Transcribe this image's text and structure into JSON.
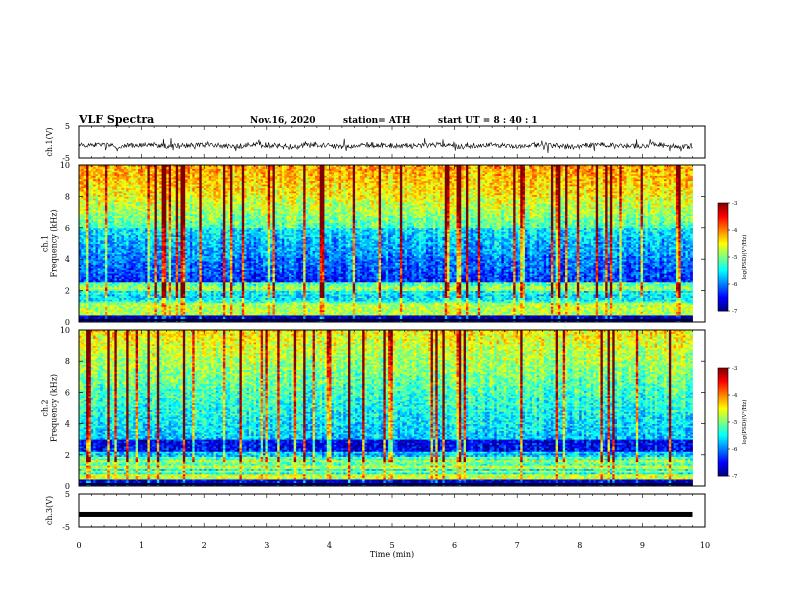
{
  "header": {
    "title": "VLF Spectra",
    "date": "Nov.16, 2020",
    "station": "station= ATH",
    "start": "start UT = 8 : 40 : 1"
  },
  "chart_data": [
    {
      "type": "line",
      "name": "ch1-waveform",
      "ylabel": "ch.1(V)",
      "yticks": [
        "5",
        "-5"
      ],
      "ylim": [
        -5,
        5
      ],
      "xlim": [
        0,
        10
      ],
      "data_end_min": 9.8,
      "description_level": "noisy trace centred near -1 V, range about -3 to 1 V"
    },
    {
      "type": "heatmap",
      "name": "ch1-spectrogram",
      "ylabel": "ch.1\nFrequency (kHz)",
      "ylabel_lines": [
        "ch.1",
        "Frequency (kHz)"
      ],
      "yticks": [
        "0",
        "2",
        "4",
        "6",
        "8",
        "10"
      ],
      "ylim": [
        0,
        10
      ],
      "xlim": [
        0,
        10
      ],
      "data_end_min": 9.8,
      "colorbar": {
        "label": "log(PSD)(V²/Hz)",
        "ticks": [
          "-3",
          "-4",
          "-5",
          "-6",
          "-7"
        ],
        "range": [
          -7,
          -3
        ]
      }
    },
    {
      "type": "heatmap",
      "name": "ch2-spectrogram",
      "ylabel_lines": [
        "ch.2",
        "Frequency (kHz)"
      ],
      "yticks": [
        "0",
        "2",
        "4",
        "6",
        "8",
        "10"
      ],
      "ylim": [
        0,
        10
      ],
      "xlim": [
        0,
        10
      ],
      "data_end_min": 9.8,
      "colorbar": {
        "label": "log(PSD)(V²/Hz)",
        "ticks": [
          "-3",
          "-4",
          "-5",
          "-6",
          "-7"
        ],
        "range": [
          -7,
          -3
        ]
      }
    },
    {
      "type": "line",
      "name": "ch3-waveform",
      "ylabel": "ch.3(V)",
      "yticks": [
        "5",
        "-5"
      ],
      "ylim": [
        -5,
        5
      ],
      "xlim": [
        0,
        10
      ],
      "data_end_min": 9.8,
      "level": -1.2
    }
  ],
  "xaxis": {
    "label": "Time (min)",
    "ticks": [
      "0",
      "1",
      "2",
      "3",
      "4",
      "5",
      "6",
      "7",
      "8",
      "9",
      "10"
    ]
  },
  "colors": {
    "cmap": [
      "#00007f",
      "#0000ff",
      "#007fff",
      "#00ffff",
      "#7fff7f",
      "#ffff00",
      "#ff7f00",
      "#ff0000",
      "#7f0000"
    ]
  }
}
